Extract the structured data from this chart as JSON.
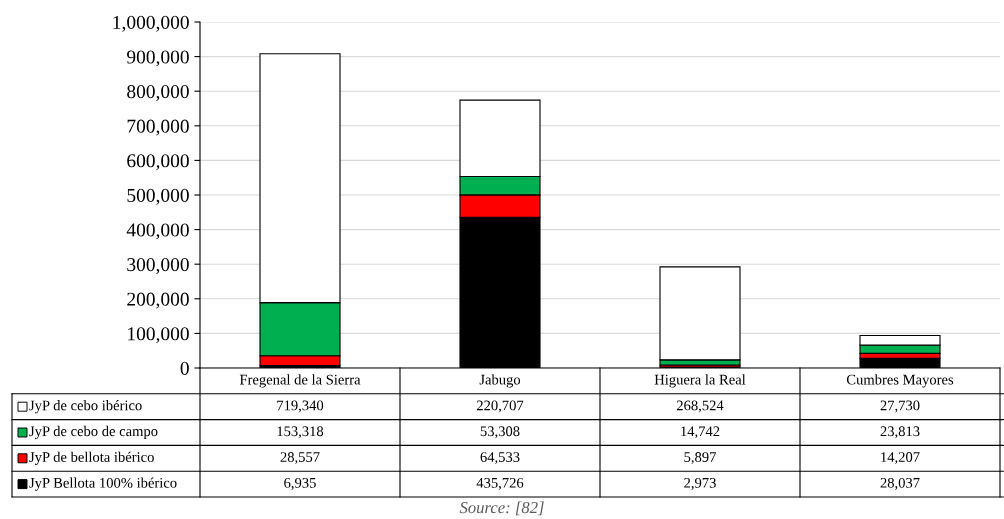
{
  "chart_data": {
    "type": "bar",
    "stacked": true,
    "categories": [
      "Fregenal de la Sierra",
      "Jabugo",
      "Higuera la Real",
      "Cumbres Mayores"
    ],
    "series": [
      {
        "name": "JyP Bellota 100% ibérico",
        "color": "#000000",
        "values": [
          6935,
          435726,
          2973,
          28037
        ],
        "value_labels": [
          "6,935",
          "435,726",
          "2,973",
          "28,037"
        ]
      },
      {
        "name": "JyP de bellota ibérico",
        "color": "#ff0000",
        "values": [
          28557,
          64533,
          5897,
          14207
        ],
        "value_labels": [
          "28,557",
          "64,533",
          "5,897",
          "14,207"
        ]
      },
      {
        "name": "JyP de cebo de campo",
        "color": "#00b050",
        "values": [
          153318,
          53308,
          14742,
          23813
        ],
        "value_labels": [
          "153,318",
          "53,308",
          "14,742",
          "23,813"
        ]
      },
      {
        "name": "JyP de cebo ibérico",
        "color": "#ffffff",
        "values": [
          719340,
          220707,
          268524,
          27730
        ],
        "value_labels": [
          "719,340",
          "220,707",
          "268,524",
          "27,730"
        ]
      }
    ],
    "ylim": [
      0,
      1000000
    ],
    "yticks": [
      0,
      {
        "value": 100000,
        "label": "100,000"
      },
      {
        "value": 200000,
        "label": "200,000"
      },
      {
        "value": 300000,
        "label": "300,000"
      },
      {
        "value": 400000,
        "label": "400,000"
      },
      {
        "value": 500000,
        "label": "500,000"
      },
      {
        "value": 600000,
        "label": "600,000"
      },
      {
        "value": 700000,
        "label": "700,000"
      },
      {
        "value": 800000,
        "label": "800,000"
      },
      {
        "value": 900000,
        "label": "900,000"
      },
      {
        "value": 1000000,
        "label": "1,000,000"
      }
    ],
    "grid": "y",
    "legend": "bottom left",
    "annotations": [
      "Source: [82]"
    ]
  }
}
